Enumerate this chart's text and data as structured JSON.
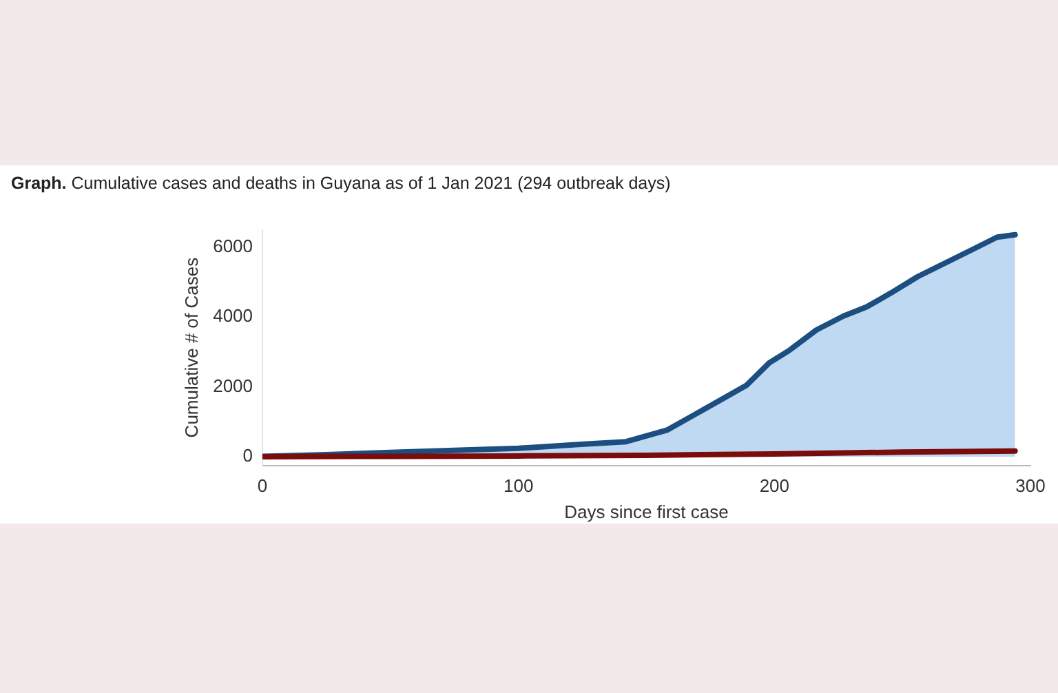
{
  "chart_data": {
    "type": "line",
    "title": "Graph. Cumulative cases and deaths in Guyana as of  1 Jan 2021 (294 outbreak days)",
    "xlabel": "Days since first case",
    "ylabel": "Cumulative # of Cases",
    "xlim": [
      0,
      300
    ],
    "xticks": [
      0,
      100,
      200,
      300
    ],
    "ylim": [
      -250,
      6500
    ],
    "yticks": [
      0,
      2000,
      4000,
      6000
    ],
    "grid": false,
    "legend": false,
    "marker": "none",
    "series": [
      {
        "type": "area",
        "color": "#1c4f80",
        "x": [
          0,
          25,
          50,
          75,
          100,
          113,
          125.5,
          142,
          158,
          174.5,
          189,
          198,
          205.5,
          216.4,
          227,
          236,
          245.5,
          256,
          267,
          278,
          287,
          294
        ],
        "values": [
          10,
          60,
          120,
          180,
          240,
          300,
          360,
          430,
          760,
          1440,
          2040,
          2690,
          3030,
          3630,
          4030,
          4290,
          4690,
          5160,
          5560,
          5960,
          6290,
          6360
        ]
      },
      {
        "type": "line",
        "color": "#7a0c0c",
        "x": [
          0,
          50,
          100,
          150,
          200,
          250,
          294
        ],
        "values": [
          0,
          10,
          20,
          40,
          80,
          130,
          160
        ]
      }
    ]
  }
}
